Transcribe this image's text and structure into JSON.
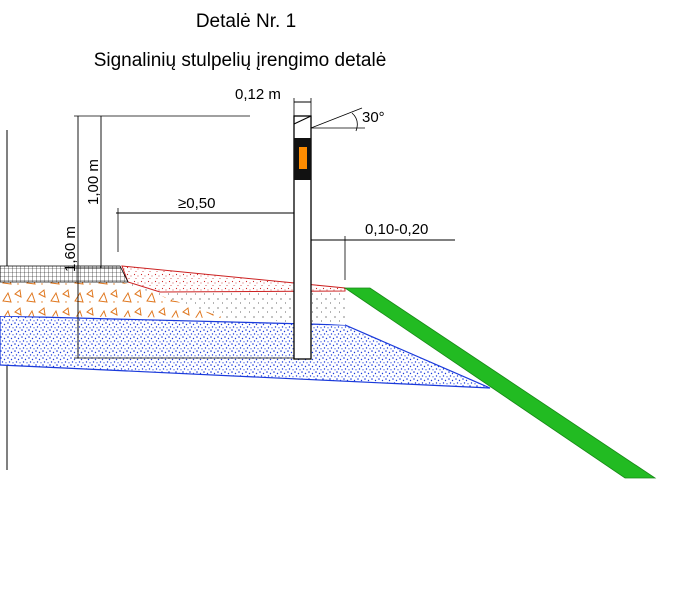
{
  "title": {
    "line1": "Detalė Nr. 1",
    "line2": "Signalinių stulpelių įrengimo detalė"
  },
  "dimensions": {
    "post_width": "0,12 m",
    "angle": "30°",
    "height_total": "1,60 m",
    "height_above": "1,00 m",
    "offset_min": "≥0,50",
    "offset_range": "0,10-0,20"
  },
  "colors": {
    "slope": "#22bb22",
    "blue_layer": "#1a3adb",
    "red_layer": "#cc2222",
    "reflector": "#ff8c00",
    "triangles": "#e07820"
  }
}
